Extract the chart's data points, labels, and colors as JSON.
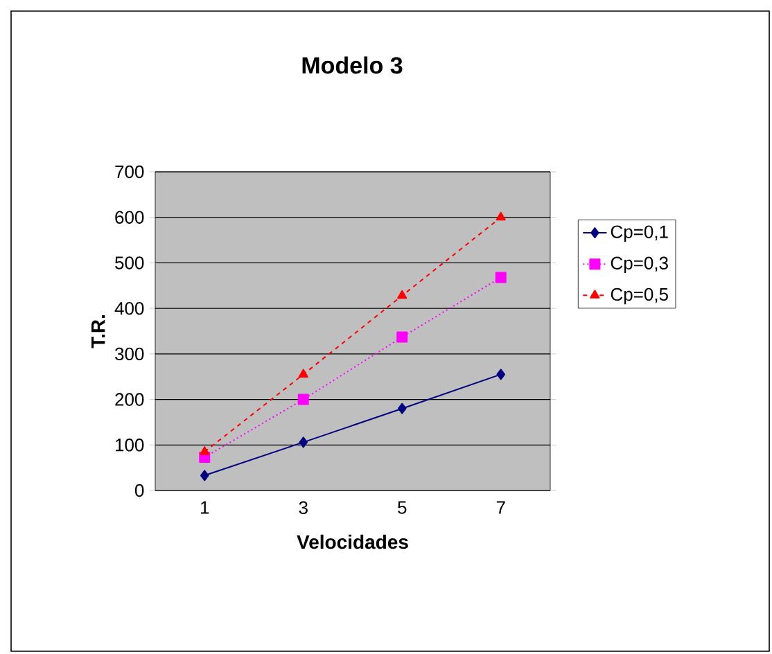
{
  "chart_data": {
    "type": "line",
    "title": "Modelo 3",
    "xlabel": "Velocidades",
    "ylabel": "T.R.",
    "categories": [
      "1",
      "3",
      "5",
      "7"
    ],
    "series": [
      {
        "name": "Cp=0,1",
        "color": "#000080",
        "values": [
          33,
          106,
          180,
          255
        ],
        "marker": "diamond",
        "line_style": "solid"
      },
      {
        "name": "Cp=0,3",
        "color": "#ff00ff",
        "values": [
          73,
          200,
          337,
          468
        ],
        "marker": "square",
        "line_style": "dotted"
      },
      {
        "name": "Cp=0,5",
        "color": "#ff0000",
        "values": [
          85,
          255,
          428,
          600
        ],
        "marker": "triangle",
        "line_style": "dashed"
      }
    ],
    "ylim": [
      0,
      700
    ],
    "yticks": [
      0,
      100,
      200,
      300,
      400,
      500,
      600,
      700
    ],
    "grid": "y",
    "legend": "right"
  }
}
